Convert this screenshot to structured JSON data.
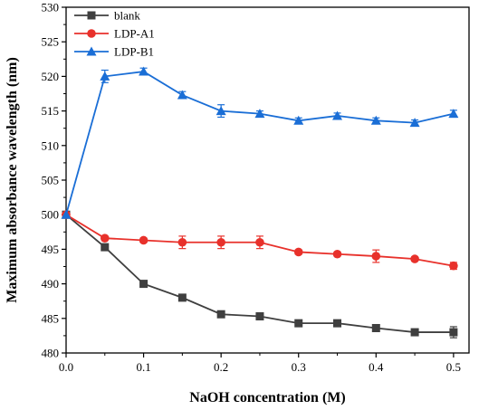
{
  "chart_data": {
    "type": "line",
    "title": "",
    "xlabel": "NaOH concentration (M)",
    "ylabel": "Maximum absorbance wavelength (nm)",
    "xlim": [
      0,
      0.52
    ],
    "ylim": [
      480,
      530
    ],
    "x_ticks": [
      "0.0",
      "0.1",
      "0.2",
      "0.3",
      "0.4",
      "0.5"
    ],
    "y_ticks": [
      "480",
      "485",
      "490",
      "495",
      "500",
      "505",
      "510",
      "515",
      "520",
      "525",
      "530"
    ],
    "x": [
      0,
      0.05,
      0.1,
      0.15,
      0.2,
      0.25,
      0.3,
      0.35,
      0.4,
      0.45,
      0.5
    ],
    "legend_position": "top-left",
    "grid": false,
    "series": [
      {
        "name": "blank",
        "color": "#3f3f3f",
        "marker": "square",
        "values": [
          500,
          495.3,
          490,
          488,
          485.6,
          485.3,
          484.3,
          484.3,
          483.6,
          483,
          483
        ],
        "errors": [
          0,
          0.3,
          0,
          0,
          0.2,
          0.2,
          0.2,
          0,
          0.2,
          0.2,
          0.8
        ]
      },
      {
        "name": "LDP-A1",
        "color": "#e8312b",
        "marker": "circle",
        "values": [
          500,
          496.6,
          496.3,
          496,
          496,
          496,
          494.6,
          494.3,
          494,
          493.6,
          492.6
        ],
        "errors": [
          0,
          0.2,
          0.3,
          0.9,
          0.9,
          0.9,
          0.3,
          0.3,
          0.9,
          0.3,
          0.5
        ]
      },
      {
        "name": "LDP-B1",
        "color": "#1a6ed6",
        "marker": "triangle",
        "values": [
          500,
          520,
          520.7,
          517.3,
          515,
          514.6,
          513.6,
          514.3,
          513.6,
          513.3,
          514.6
        ],
        "errors": [
          0,
          0.9,
          0.5,
          0.5,
          0.9,
          0.4,
          0.4,
          0.4,
          0.4,
          0.4,
          0.5
        ]
      }
    ]
  }
}
